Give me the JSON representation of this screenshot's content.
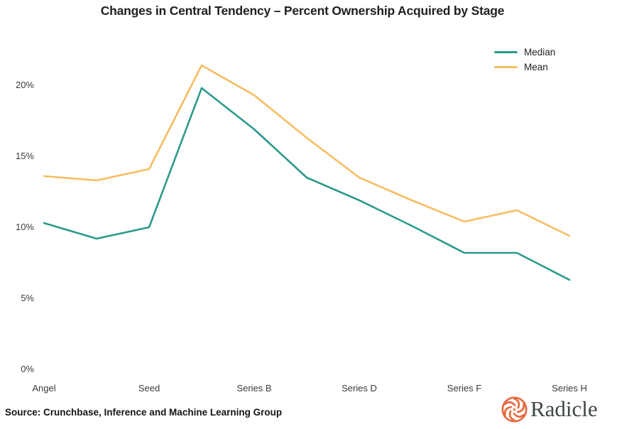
{
  "source_note": "Source: Crunchbase, Inference and Machine Learning Group",
  "brand": {
    "name": "Radicle",
    "icon": "radicle-pinwheel-icon",
    "icon_color": "#e8683f",
    "wordmark_color": "#3e4745"
  },
  "chart_data": {
    "type": "line",
    "title": "Changes in Central Tendency – Percent Ownership Acquired by Stage",
    "categories": [
      "Angel",
      "",
      "Seed",
      "",
      "Series B",
      "",
      "Series D",
      "",
      "Series F",
      "",
      "Series H"
    ],
    "visible_x_labels": [
      "Angel",
      "Seed",
      "Series B",
      "Series D",
      "Series F",
      "Series H"
    ],
    "series": [
      {
        "name": "Median",
        "color": "#2b9a8c",
        "values": [
          10.3,
          9.2,
          10.0,
          19.8,
          16.9,
          13.5,
          11.9,
          10.1,
          8.2,
          8.2,
          6.3
        ]
      },
      {
        "name": "Mean",
        "color": "#f7bd62",
        "values": [
          13.6,
          13.3,
          14.1,
          21.4,
          19.3,
          16.3,
          13.5,
          11.9,
          10.4,
          11.2,
          9.4
        ]
      }
    ],
    "y_ticks": [
      "0%",
      "5%",
      "10%",
      "15%",
      "20%"
    ],
    "ylim": [
      0,
      23
    ],
    "xlabel": "",
    "ylabel": "Percent ownership acquired",
    "grid": false,
    "axes_lines_visible": false,
    "legend_position": "top-right"
  }
}
